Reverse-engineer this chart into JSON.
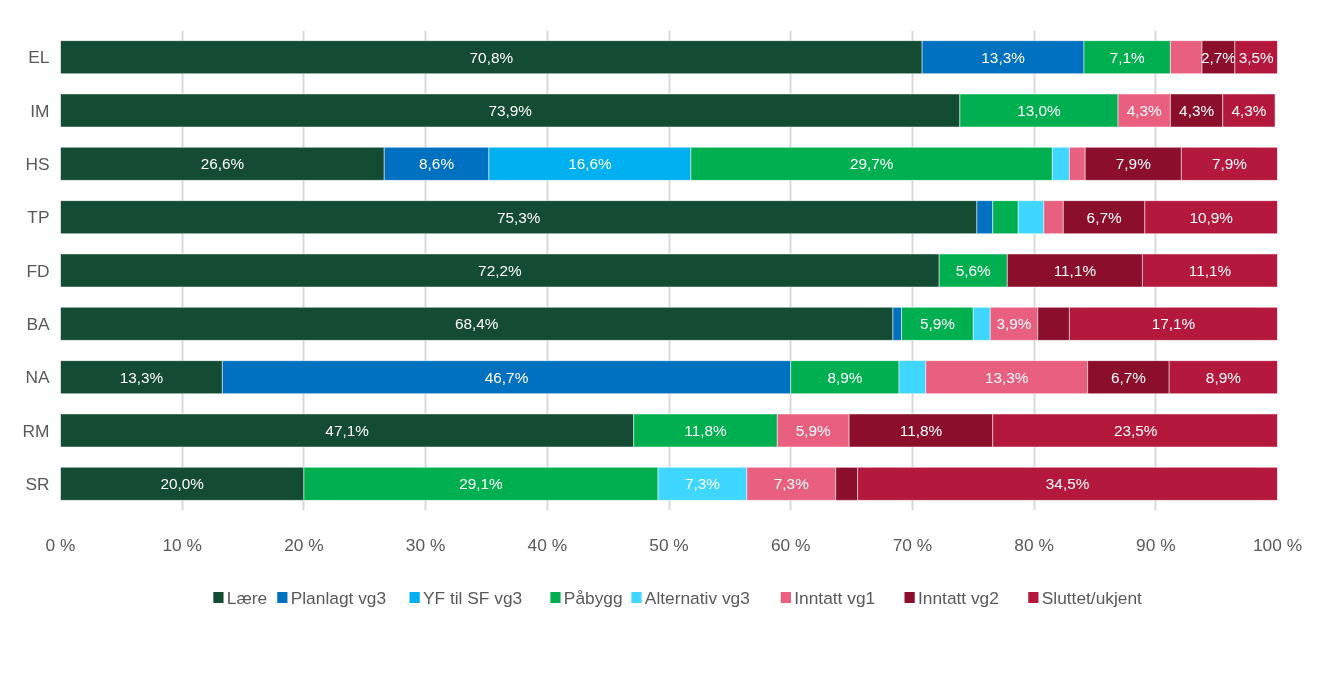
{
  "chart_data": {
    "type": "bar",
    "orientation": "horizontal",
    "stacked": true,
    "categories": [
      "EL",
      "IM",
      "HS",
      "TP",
      "FD",
      "BA",
      "NA",
      "RM",
      "SR"
    ],
    "series": [
      {
        "name": "Lære",
        "color": "#134b33",
        "values": [
          70.8,
          73.9,
          26.6,
          75.3,
          72.2,
          68.4,
          13.3,
          47.1,
          20.0
        ],
        "value_labels": [
          "70,8%",
          "73,9%",
          "26,6%",
          "75,3%",
          "72,2%",
          "68,4%",
          "13,3%",
          "47,1%",
          "20,0%"
        ]
      },
      {
        "name": "Planlagt vg3",
        "color": "#0070c0",
        "values": [
          13.3,
          null,
          8.6,
          1.3,
          null,
          0.7,
          46.7,
          null,
          null
        ],
        "value_labels": [
          "13,3%",
          null,
          "8,6%",
          null,
          null,
          null,
          "46,7%",
          null,
          null
        ]
      },
      {
        "name": "YF til SF vg3",
        "color": "#00b0f0",
        "values": [
          null,
          null,
          16.6,
          null,
          null,
          null,
          null,
          null,
          null
        ],
        "value_labels": [
          null,
          null,
          "16,6%",
          null,
          null,
          null,
          null,
          null,
          null
        ]
      },
      {
        "name": "Påbygg",
        "color": "#00b050",
        "values": [
          7.1,
          13.0,
          29.7,
          2.1,
          5.6,
          5.9,
          8.9,
          11.8,
          29.1
        ],
        "value_labels": [
          "7,1%",
          "13,0%",
          "29,7%",
          null,
          "5,6%",
          "5,9%",
          "8,9%",
          "11,8%",
          "29,1%"
        ]
      },
      {
        "name": "Alternativ vg3",
        "color": "#3fd6ff",
        "values": [
          null,
          null,
          1.4,
          2.1,
          null,
          1.4,
          2.2,
          null,
          7.3
        ],
        "value_labels": [
          null,
          null,
          null,
          null,
          null,
          null,
          null,
          null,
          "7,3%"
        ]
      },
      {
        "name": "Inntatt vg1",
        "color": "#e85f7f",
        "values": [
          2.6,
          4.3,
          1.3,
          1.6,
          null,
          3.9,
          13.3,
          5.9,
          7.3
        ],
        "value_labels": [
          null,
          "4,3%",
          null,
          null,
          null,
          "3,9%",
          "13,3%",
          "5,9%",
          "7,3%"
        ]
      },
      {
        "name": "Inntatt vg2",
        "color": "#8b0f2d",
        "values": [
          2.7,
          4.3,
          7.9,
          6.7,
          11.1,
          2.6,
          6.7,
          11.8,
          1.8
        ],
        "value_labels": [
          "2,7%",
          "4,3%",
          "7,9%",
          "6,7%",
          "11,1%",
          null,
          "6,7%",
          "11,8%",
          null
        ]
      },
      {
        "name": "Sluttet/ukjent",
        "color": "#b5183d",
        "values": [
          3.5,
          4.3,
          7.9,
          10.9,
          11.1,
          17.1,
          8.9,
          23.5,
          34.5
        ],
        "value_labels": [
          "3,5%",
          "4,3%",
          "7,9%",
          "10,9%",
          "11,1%",
          "17,1%",
          "8,9%",
          "23,5%",
          "34,5%"
        ]
      }
    ],
    "xlim": [
      0,
      100
    ],
    "xticks": [
      {
        "value": 0,
        "label": "0 %"
      },
      {
        "value": 10,
        "label": "10 %"
      },
      {
        "value": 20,
        "label": "20 %"
      },
      {
        "value": 30,
        "label": "30 %"
      },
      {
        "value": 40,
        "label": "40 %"
      },
      {
        "value": 50,
        "label": "50 %"
      },
      {
        "value": 60,
        "label": "60 %"
      },
      {
        "value": 70,
        "label": "70 %"
      },
      {
        "value": 80,
        "label": "80 %"
      },
      {
        "value": 90,
        "label": "90 %"
      },
      {
        "value": 100,
        "label": "100 %"
      }
    ],
    "grid": "x",
    "legend": "bottom"
  }
}
